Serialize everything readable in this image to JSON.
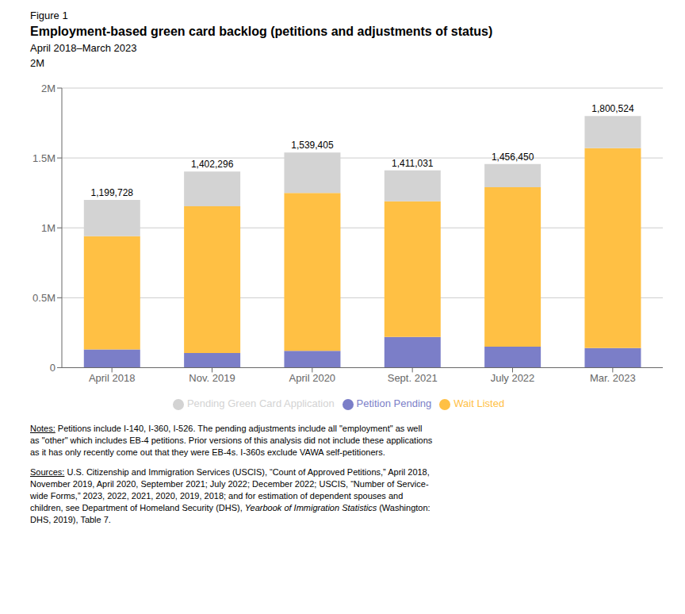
{
  "chart_data": {
    "type": "bar",
    "stacked": true,
    "grid": true,
    "legend": "bottom",
    "figure_label": "Figure 1",
    "title": "Employment-based green card backlog (petitions and adjustments of status)",
    "subtitle": "April 2018–March 2023",
    "ylabel": "2M",
    "categories": [
      "April 2018",
      "Nov. 2019",
      "April 2020",
      "Sept. 2021",
      "July 2022",
      "Mar. 2023"
    ],
    "series": [
      {
        "name": "Petition Pending",
        "color": "#7B7EC8",
        "values": [
          130000,
          105000,
          120000,
          220000,
          150000,
          140000
        ]
      },
      {
        "name": "Wait Listed",
        "color": "#FFC044",
        "values": [
          810000,
          1050000,
          1130000,
          970000,
          1140000,
          1430000
        ]
      },
      {
        "name": "Pending Green Card Application",
        "color": "#D3D3D3",
        "values": [
          259728,
          247296,
          289405,
          221031,
          166450,
          230524
        ]
      }
    ],
    "totals": {
      "values": [
        1199728,
        1402296,
        1539405,
        1411031,
        1456450,
        1800524
      ],
      "value_labels": [
        "1,199,728",
        "1,402,296",
        "1,539,405",
        "1,411,031",
        "1,456,450",
        "1,800,524"
      ]
    },
    "ylim": [
      0,
      2000000
    ],
    "yticks": [
      0,
      {
        "value": 500000,
        "label": "0.5M"
      },
      {
        "value": 1000000,
        "label": "1M"
      },
      {
        "value": 1500000,
        "label": "1.5M"
      },
      {
        "value": 2000000,
        "label": "2M"
      }
    ],
    "notes_label": "Notes:",
    "notes_body": " Petitions include I-140, I-360, I-526. The pending adjustments include all \"employment\" as well\nas \"other\" which includes EB-4 petitions. Prior versions of this analysis did not include these applications\nas it has only recently come out that they were EB-4s. I-360s exclude VAWA self-petitioners.",
    "sources_label": "Sources:",
    "sources_body": " U.S. Citizenship and Immigration Services (USCIS), “Count of Approved Petitions,” April 2018,\nNovember 2019, April 2020, September 2021; July 2022; December 2022; USCIS, “Number of Service-\nwide Forms,” 2023, 2022, 2021, 2020, 2019, 2018; and for estimation of dependent spouses and\nchildren, see Department of Homeland Security (DHS), ",
    "sources_italic": "Yearbook of Immigration Statistics",
    "sources_tail": " (Washington:\nDHS, 2019), Table 7."
  }
}
